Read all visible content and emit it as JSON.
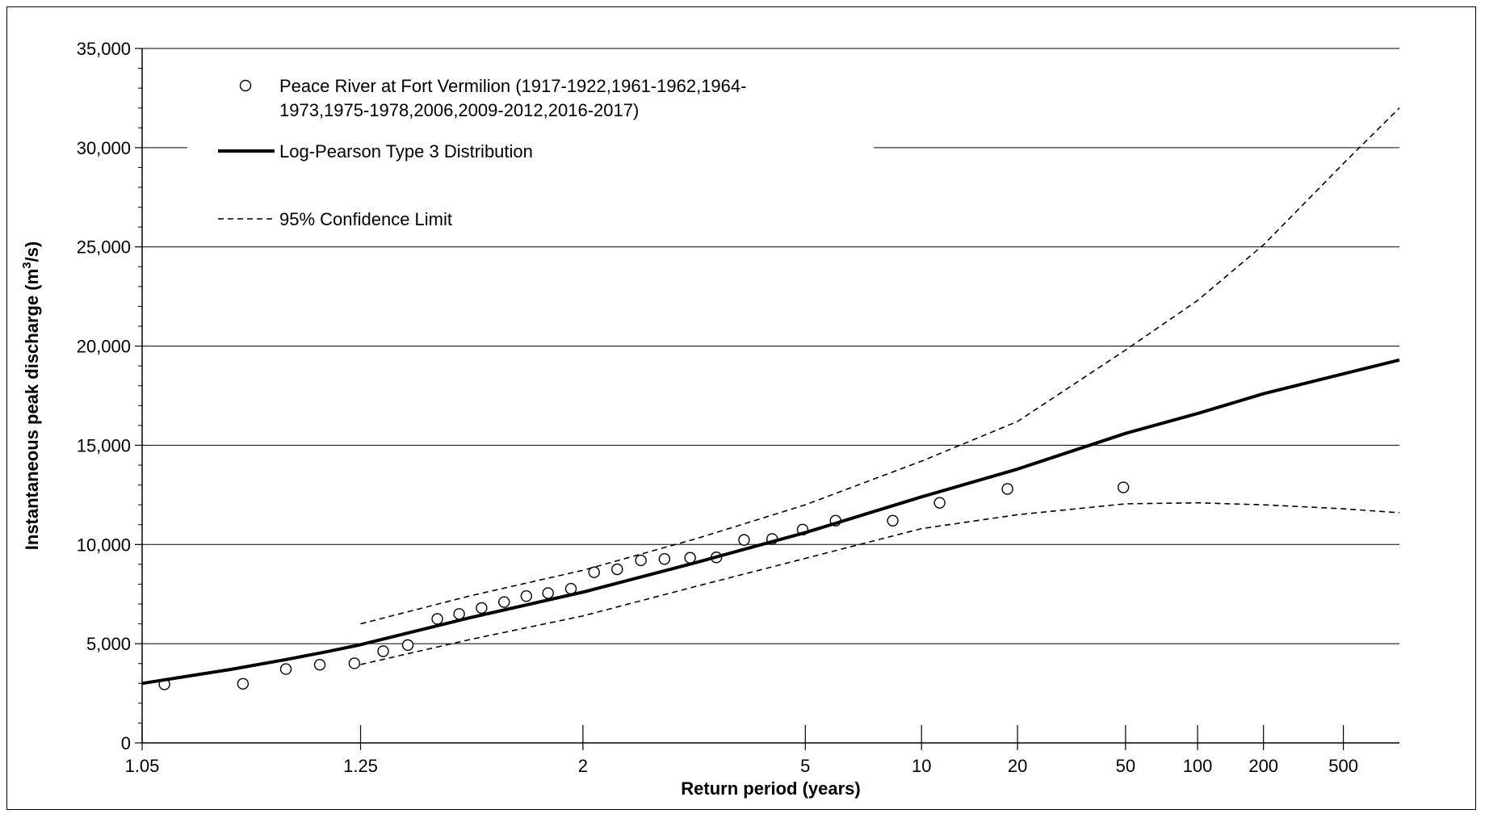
{
  "chart_data": {
    "type": "scatter",
    "title": "",
    "xlabel": "Return period (years)",
    "ylabel": "Instantaneous peak discharge (m³/s)",
    "ylabel_main": "Instantaneous peak discharge (m",
    "ylabel_sup": "3",
    "ylabel_end": "/s)",
    "x_scale": "probability (Gumbel-type return period)",
    "xlim": [
      1.05,
      1000
    ],
    "ylim": [
      0,
      35000
    ],
    "grid": "horizontal",
    "legend_position": "top-left",
    "x_ticks": [
      {
        "value": 1.05,
        "label": "1.05"
      },
      {
        "value": 1.25,
        "label": "1.25"
      },
      {
        "value": 2,
        "label": "2"
      },
      {
        "value": 5,
        "label": "5"
      },
      {
        "value": 10,
        "label": "10"
      },
      {
        "value": 20,
        "label": "20"
      },
      {
        "value": 50,
        "label": "50"
      },
      {
        "value": 100,
        "label": "100"
      },
      {
        "value": 200,
        "label": "200"
      },
      {
        "value": 500,
        "label": "500"
      }
    ],
    "y_ticks": [
      {
        "value": 0,
        "label": "0"
      },
      {
        "value": 5000,
        "label": "5,000"
      },
      {
        "value": 10000,
        "label": "10,000"
      },
      {
        "value": 15000,
        "label": "15,000"
      },
      {
        "value": 20000,
        "label": "20,000"
      },
      {
        "value": 25000,
        "label": "25,000"
      },
      {
        "value": 30000,
        "label": "30,000"
      },
      {
        "value": 35000,
        "label": "35,000"
      }
    ],
    "legend": [
      {
        "key": "observed",
        "symbol": "circle",
        "lines": [
          "Peace River at Fort Vermilion (1917-1922,1961-1962,1964-",
          "1973,1975-1978,2006,2009-2012,2016-2017)"
        ]
      },
      {
        "key": "lp3",
        "symbol": "solid-line",
        "lines": [
          "Log-Pearson Type 3 Distribution"
        ]
      },
      {
        "key": "ci",
        "symbol": "dashed-line",
        "lines": [
          "95% Confidence Limit"
        ]
      }
    ],
    "series": [
      {
        "key": "observed",
        "style": "markers",
        "points": [
          {
            "x": 1.06,
            "y": 2950
          },
          {
            "x": 1.11,
            "y": 2980
          },
          {
            "x": 1.15,
            "y": 3720
          },
          {
            "x": 1.19,
            "y": 3940
          },
          {
            "x": 1.24,
            "y": 4010
          },
          {
            "x": 1.29,
            "y": 4620
          },
          {
            "x": 1.34,
            "y": 4930
          },
          {
            "x": 1.41,
            "y": 6250
          },
          {
            "x": 1.47,
            "y": 6500
          },
          {
            "x": 1.54,
            "y": 6800
          },
          {
            "x": 1.62,
            "y": 7100
          },
          {
            "x": 1.71,
            "y": 7400
          },
          {
            "x": 1.81,
            "y": 7550
          },
          {
            "x": 1.93,
            "y": 7770
          },
          {
            "x": 2.07,
            "y": 8600
          },
          {
            "x": 2.23,
            "y": 8750
          },
          {
            "x": 2.42,
            "y": 9200
          },
          {
            "x": 2.64,
            "y": 9270
          },
          {
            "x": 2.92,
            "y": 9330
          },
          {
            "x": 3.26,
            "y": 9350
          },
          {
            "x": 3.69,
            "y": 10230
          },
          {
            "x": 4.22,
            "y": 10280
          },
          {
            "x": 4.93,
            "y": 10750
          },
          {
            "x": 5.9,
            "y": 11200
          },
          {
            "x": 8.3,
            "y": 11200
          },
          {
            "x": 11.3,
            "y": 12100
          },
          {
            "x": 18.5,
            "y": 12800
          },
          {
            "x": 49,
            "y": 12880
          }
        ]
      },
      {
        "key": "lp3",
        "style": "solid",
        "points": [
          {
            "x": 1.05,
            "y": 3000
          },
          {
            "x": 1.1,
            "y": 3700
          },
          {
            "x": 1.15,
            "y": 4200
          },
          {
            "x": 1.2,
            "y": 4600
          },
          {
            "x": 1.25,
            "y": 4950
          },
          {
            "x": 1.5,
            "y": 6300
          },
          {
            "x": 2,
            "y": 7600
          },
          {
            "x": 3,
            "y": 9100
          },
          {
            "x": 5,
            "y": 10600
          },
          {
            "x": 10,
            "y": 12400
          },
          {
            "x": 20,
            "y": 13800
          },
          {
            "x": 50,
            "y": 15600
          },
          {
            "x": 100,
            "y": 16600
          },
          {
            "x": 200,
            "y": 17600
          },
          {
            "x": 500,
            "y": 18600
          },
          {
            "x": 1000,
            "y": 19300
          }
        ]
      },
      {
        "key": "ci_upper",
        "style": "dashed",
        "points": [
          {
            "x": 1.25,
            "y": 6000
          },
          {
            "x": 1.5,
            "y": 7400
          },
          {
            "x": 2,
            "y": 8700
          },
          {
            "x": 3,
            "y": 10300
          },
          {
            "x": 5,
            "y": 12000
          },
          {
            "x": 10,
            "y": 14200
          },
          {
            "x": 20,
            "y": 16200
          },
          {
            "x": 50,
            "y": 19800
          },
          {
            "x": 100,
            "y": 22300
          },
          {
            "x": 200,
            "y": 25100
          },
          {
            "x": 500,
            "y": 29200
          },
          {
            "x": 1000,
            "y": 32000
          }
        ]
      },
      {
        "key": "ci_lower",
        "style": "dashed",
        "points": [
          {
            "x": 1.25,
            "y": 3950
          },
          {
            "x": 1.5,
            "y": 5200
          },
          {
            "x": 2,
            "y": 6400
          },
          {
            "x": 3,
            "y": 7900
          },
          {
            "x": 5,
            "y": 9300
          },
          {
            "x": 10,
            "y": 10800
          },
          {
            "x": 20,
            "y": 11500
          },
          {
            "x": 50,
            "y": 12050
          },
          {
            "x": 100,
            "y": 12100
          },
          {
            "x": 200,
            "y": 12000
          },
          {
            "x": 500,
            "y": 11800
          },
          {
            "x": 1000,
            "y": 11600
          }
        ]
      }
    ]
  }
}
